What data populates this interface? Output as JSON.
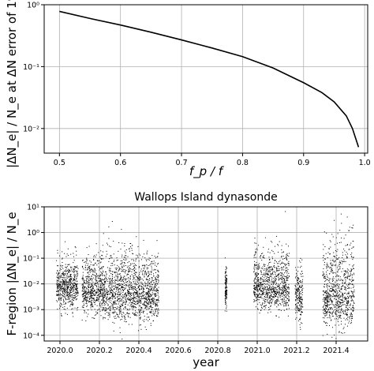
{
  "chart_data": [
    {
      "type": "line",
      "title": "",
      "xlabel": "f_p / f",
      "ylabel": "|ΔN_e| / N_e at ΔN error of 1%",
      "xlim": [
        0.475,
        1.005
      ],
      "ylim": [
        0.004,
        1.0
      ],
      "yscale": "log",
      "grid": true,
      "xticks": [
        "0.5",
        "0.6",
        "0.7",
        "0.8",
        "0.9",
        "1.0"
      ],
      "xtick_values": [
        0.5,
        0.6,
        0.7,
        0.8,
        0.9,
        1.0
      ],
      "yticks": [
        "10⁰",
        "10⁻¹",
        "10⁻²"
      ],
      "ytick_values": [
        1,
        0.1,
        0.01
      ],
      "series": [
        {
          "values_x": [
            0.5,
            0.55,
            0.6,
            0.65,
            0.7,
            0.75,
            0.8,
            0.85,
            0.9,
            0.93,
            0.95,
            0.97,
            0.98,
            0.99
          ],
          "values_y": [
            0.78,
            0.6,
            0.47,
            0.36,
            0.27,
            0.2,
            0.145,
            0.095,
            0.055,
            0.038,
            0.027,
            0.016,
            0.01,
            0.005
          ]
        }
      ]
    },
    {
      "type": "scatter",
      "title": "Wallops Island dynasonde",
      "xlabel": "year",
      "ylabel": "F-region |ΔN_e| / N_e",
      "xlim": [
        2019.92,
        2021.56
      ],
      "ylim": [
        6e-05,
        10
      ],
      "yscale": "log",
      "grid": true,
      "xticks": [
        "2020.0",
        "2020.2",
        "2020.4",
        "2020.6",
        "2020.8",
        "2021.0",
        "2021.2",
        "2021.4"
      ],
      "xtick_values": [
        2020.0,
        2020.2,
        2020.4,
        2020.6,
        2020.8,
        2021.0,
        2021.2,
        2021.4
      ],
      "yticks": [
        "10¹",
        "10⁰",
        "10⁻¹",
        "10⁻²",
        "10⁻³",
        "10⁻⁴"
      ],
      "ytick_values": [
        10,
        1,
        0.1,
        0.01,
        0.001,
        0.0001
      ],
      "data_segments": [
        {
          "x_start": 2019.98,
          "x_end": 2020.09,
          "median": 0.008,
          "low": 0.0006,
          "high": 0.3
        },
        {
          "x_start": 2020.11,
          "x_end": 2020.21,
          "median": 0.006,
          "low": 0.0004,
          "high": 0.4
        },
        {
          "x_start": 2020.21,
          "x_end": 2020.5,
          "median": 0.005,
          "low": 0.0002,
          "high": 1.0
        },
        {
          "x_start": 2020.835,
          "x_end": 2020.845,
          "median": 0.006,
          "low": 0.0007,
          "high": 0.15
        },
        {
          "x_start": 2020.98,
          "x_end": 2021.16,
          "median": 0.008,
          "low": 0.0007,
          "high": 0.9
        },
        {
          "x_start": 2021.19,
          "x_end": 2021.23,
          "median": 0.004,
          "low": 0.0002,
          "high": 0.2
        },
        {
          "x_start": 2021.33,
          "x_end": 2021.49,
          "median": 0.004,
          "low": 0.0001,
          "high": 5.0
        }
      ]
    }
  ]
}
